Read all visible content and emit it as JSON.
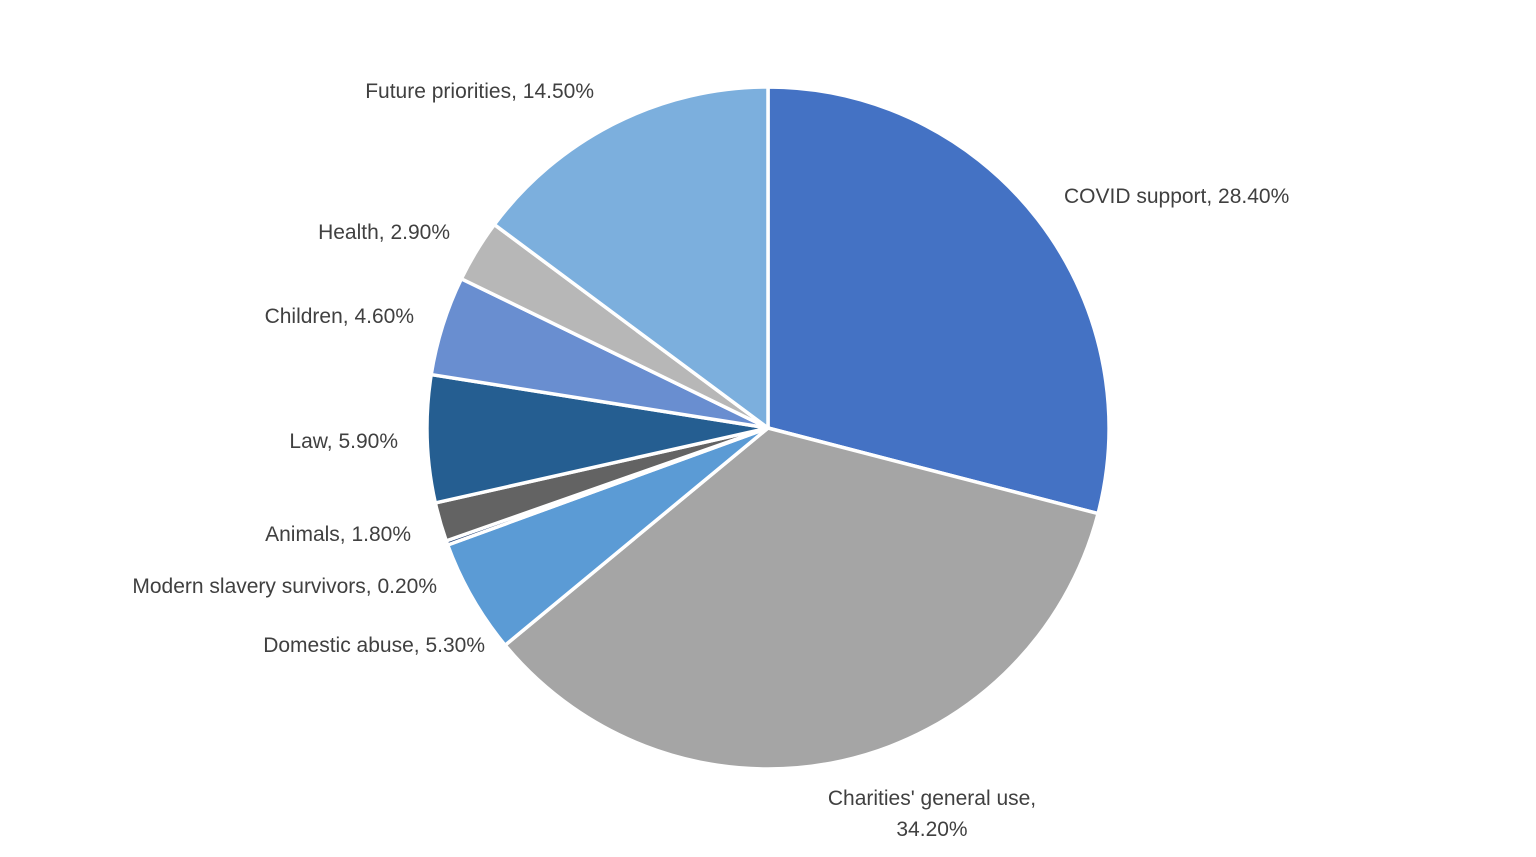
{
  "chart_data": {
    "type": "pie",
    "title": "",
    "start_angle_deg": 0,
    "direction": "clockwise",
    "slices": [
      {
        "label": "COVID support, 28.40%",
        "name": "COVID support",
        "value": 28.4,
        "color": "#4472C4"
      },
      {
        "label": "Charities' general use,",
        "label2": "34.20%",
        "name": "Charities' general use",
        "value": 34.2,
        "color": "#A5A5A5"
      },
      {
        "label": "Domestic abuse, 5.30%",
        "name": "Domestic abuse",
        "value": 5.3,
        "color": "#5B9BD5"
      },
      {
        "label": "Modern slavery survivors, 0.20%",
        "name": "Modern slavery survivors",
        "value": 0.2,
        "color": "#264478"
      },
      {
        "label": "Animals, 1.80%",
        "name": "Animals",
        "value": 1.8,
        "color": "#636363"
      },
      {
        "label": "Law, 5.90%",
        "name": "Law",
        "value": 5.9,
        "color": "#255E91"
      },
      {
        "label": "Children, 4.60%",
        "name": "Children",
        "value": 4.6,
        "color": "#698ED0"
      },
      {
        "label": "Health, 2.90%",
        "name": "Health",
        "value": 2.9,
        "color": "#B7B7B7"
      },
      {
        "label": "Future priorities, 14.50%",
        "name": "Future priorities",
        "value": 14.5,
        "color": "#7CAFDD"
      }
    ]
  }
}
